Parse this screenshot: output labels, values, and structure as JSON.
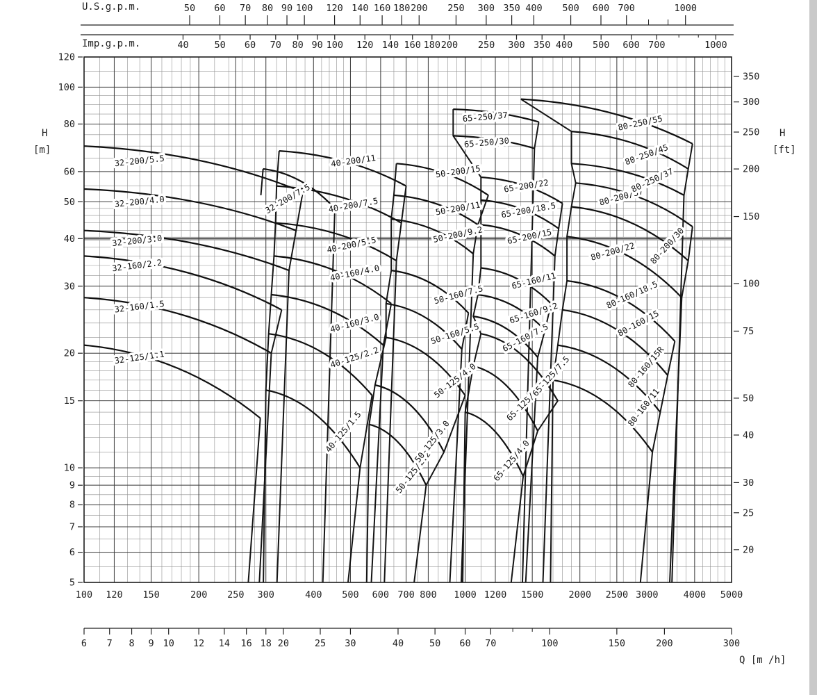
{
  "chart_data": {
    "type": "line",
    "description": "Pump selection chart: head H versus flow Q, log-log grid, envelope curves per pump model",
    "q_range_lmin": [
      100,
      5000
    ],
    "h_range_m": [
      5,
      120
    ],
    "highlight_h_m": 40,
    "axes": {
      "us_gpm": {
        "title": "U.S.g.p.m.",
        "ticks": [
          50,
          60,
          70,
          80,
          90,
          100,
          120,
          140,
          160,
          180,
          200,
          250,
          300,
          350,
          400,
          500,
          600,
          700,
          1000
        ],
        "minor": [
          800,
          900
        ],
        "lmin_per_unit": 3.7854
      },
      "imp_gpm": {
        "title": "Imp.g.p.m.",
        "ticks": [
          40,
          50,
          60,
          70,
          80,
          90,
          100,
          120,
          140,
          160,
          180,
          200,
          250,
          300,
          350,
          400,
          500,
          600,
          700,
          1000
        ],
        "minor": [
          800,
          900
        ],
        "lmin_per_unit": 4.5461
      },
      "lmin": {
        "ticks": [
          100,
          120,
          150,
          200,
          250,
          300,
          400,
          500,
          600,
          700,
          800,
          1000,
          1200,
          1500,
          2000,
          2500,
          3000,
          4000,
          5000
        ]
      },
      "m3h": {
        "title": "Q [m /h]",
        "ticks": [
          6,
          7,
          8,
          9,
          10,
          12,
          14,
          16,
          18,
          20,
          25,
          30,
          40,
          50,
          60,
          70,
          100,
          150,
          200,
          300
        ],
        "minor": [
          80,
          90
        ],
        "lmin_per_unit": 16.6667
      },
      "h_m": {
        "title": "H",
        "unit": "[m]",
        "ticks": [
          5,
          6,
          7,
          8,
          9,
          10,
          15,
          20,
          30,
          40,
          50,
          60,
          80,
          100,
          120
        ]
      },
      "h_ft": {
        "title": "H",
        "unit": "[ft]",
        "ticks": [
          20,
          25,
          30,
          40,
          50,
          75,
          100,
          150,
          200,
          250,
          300,
          350
        ],
        "m_per_unit": 0.3048
      }
    },
    "extra_segments": [
      [
        [
          291,
          52
        ],
        [
          295,
          61
        ]
      ]
    ],
    "pumps": [
      {
        "label": "32-125/1.1",
        "family": "32",
        "group": "32-125",
        "q1": 100,
        "h1": 21,
        "q2": 290,
        "h2": 13.5,
        "lq": 140,
        "lh": 19.5,
        "la": -8
      },
      {
        "label": "32-160/1.5",
        "family": "32",
        "group": "32-160",
        "q1": 100,
        "h1": 28,
        "q2": 310,
        "h2": 20,
        "lq": 140,
        "lh": 26.5,
        "la": -7
      },
      {
        "label": "32-160/2.2",
        "family": "32",
        "group": "32-160",
        "q1": 100,
        "h1": 36,
        "q2": 330,
        "h2": 26,
        "lq": 138,
        "lh": 34,
        "la": -7
      },
      {
        "label": "32-200/3.0",
        "family": "32",
        "group": "32-200",
        "q1": 100,
        "h1": 42,
        "q2": 345,
        "h2": 33,
        "lq": 138,
        "lh": 39.5,
        "la": -6
      },
      {
        "label": "32-200/4.0",
        "family": "32",
        "group": "32-200",
        "q1": 100,
        "h1": 54,
        "q2": 360,
        "h2": 42,
        "lq": 140,
        "lh": 50,
        "la": -6
      },
      {
        "label": "32-200/5.5",
        "family": "32",
        "group": "32-200",
        "q1": 100,
        "h1": 70,
        "q2": 375,
        "h2": 53,
        "lq": 140,
        "lh": 64,
        "la": -6
      },
      {
        "label": "32-200/7.5",
        "family": "32",
        "group": "32-200B",
        "q1": 295,
        "h1": 61,
        "q2": 455,
        "h2": 48,
        "lq": 345,
        "lh": 51,
        "la": -30
      },
      {
        "label": "40-125/1.5",
        "family": "40",
        "group": "40-125",
        "q1": 300,
        "h1": 16,
        "q2": 530,
        "h2": 10,
        "lq": 485,
        "lh": 12.5,
        "la": -50
      },
      {
        "label": "40-125/2.2",
        "family": "40",
        "group": "40-125",
        "q1": 305,
        "h1": 22.5,
        "q2": 570,
        "h2": 15.5,
        "lq": 515,
        "lh": 19.5,
        "la": -18
      },
      {
        "label": "40-160/3.0",
        "family": "40",
        "group": "40-160",
        "q1": 310,
        "h1": 28.5,
        "q2": 610,
        "h2": 21,
        "lq": 515,
        "lh": 24,
        "la": -15
      },
      {
        "label": "40-160/4.0",
        "family": "40",
        "group": "40-160",
        "q1": 315,
        "h1": 36,
        "q2": 640,
        "h2": 27,
        "lq": 515,
        "lh": 32.5,
        "la": -12
      },
      {
        "label": "40-200/5.5",
        "family": "40",
        "group": "40-200",
        "q1": 318,
        "h1": 44,
        "q2": 660,
        "h2": 35,
        "lq": 505,
        "lh": 38.5,
        "la": -12
      },
      {
        "label": "40-200/7.5",
        "family": "40",
        "group": "40-200",
        "q1": 320,
        "h1": 55,
        "q2": 680,
        "h2": 44,
        "lq": 510,
        "lh": 49,
        "la": -10
      },
      {
        "label": "40-200/11",
        "family": "40",
        "group": "40-200",
        "q1": 325,
        "h1": 68,
        "q2": 700,
        "h2": 55,
        "lq": 510,
        "lh": 64,
        "la": -8
      },
      {
        "label": "50-125/2.2",
        "family": "50",
        "group": "50-125",
        "q1": 560,
        "h1": 13,
        "q2": 790,
        "h2": 9,
        "lq": 740,
        "lh": 9.8,
        "la": -52
      },
      {
        "label": "50-125/3.0",
        "family": "50",
        "group": "50-125",
        "q1": 580,
        "h1": 16.5,
        "q2": 880,
        "h2": 11,
        "lq": 830,
        "lh": 11.8,
        "la": -52
      },
      {
        "label": "50-125/4.0",
        "family": "50",
        "group": "50-125",
        "q1": 620,
        "h1": 22,
        "q2": 1000,
        "h2": 15.5,
        "lq": 950,
        "lh": 17,
        "la": -38
      },
      {
        "label": "50-160/5.5",
        "family": "50",
        "group": "50-160",
        "q1": 620,
        "h1": 27,
        "q2": 980,
        "h2": 20.5,
        "lq": 945,
        "lh": 22.5,
        "la": -18
      },
      {
        "label": "50-160/7.5",
        "family": "50",
        "group": "50-160",
        "q1": 640,
        "h1": 33,
        "q2": 1020,
        "h2": 25.5,
        "lq": 965,
        "lh": 28.5,
        "la": -15
      },
      {
        "label": "50-200/9.2",
        "family": "50",
        "group": "50-200",
        "q1": 640,
        "h1": 45,
        "q2": 1050,
        "h2": 36.5,
        "lq": 960,
        "lh": 41,
        "la": -12
      },
      {
        "label": "50-200/11",
        "family": "50",
        "group": "50-200",
        "q1": 650,
        "h1": 52,
        "q2": 1080,
        "h2": 43.5,
        "lq": 960,
        "lh": 48,
        "la": -10
      },
      {
        "label": "50-200/15",
        "family": "50",
        "group": "50-200",
        "q1": 660,
        "h1": 63,
        "q2": 1150,
        "h2": 52,
        "lq": 960,
        "lh": 60,
        "la": -8
      },
      {
        "label": "65-125/4.0",
        "family": "65",
        "group": "65-125",
        "q1": 1000,
        "h1": 14,
        "q2": 1420,
        "h2": 9.5,
        "lq": 1340,
        "lh": 10.5,
        "la": -50
      },
      {
        "label": "65-125/5.5",
        "family": "65",
        "group": "65-125",
        "q1": 1050,
        "h1": 18.5,
        "q2": 1550,
        "h2": 12.5,
        "lq": 1460,
        "lh": 15,
        "la": -45
      },
      {
        "label": "65-125/7.5",
        "family": "65",
        "group": "65-125",
        "q1": 1100,
        "h1": 22.5,
        "q2": 1750,
        "h2": 15,
        "lq": 1700,
        "lh": 17.5,
        "la": -48
      },
      {
        "label": "65-160/7.5",
        "family": "65",
        "group": "65-160",
        "q1": 1050,
        "h1": 25,
        "q2": 1550,
        "h2": 19.5,
        "lq": 1450,
        "lh": 22,
        "la": -28
      },
      {
        "label": "65-160/9.2",
        "family": "65",
        "group": "65-160",
        "q1": 1080,
        "h1": 28.5,
        "q2": 1620,
        "h2": 23,
        "lq": 1520,
        "lh": 25.5,
        "la": -18
      },
      {
        "label": "65-160/11",
        "family": "65",
        "group": "65-160",
        "q1": 1100,
        "h1": 33.5,
        "q2": 1680,
        "h2": 27,
        "lq": 1520,
        "lh": 31,
        "la": -14
      },
      {
        "label": "65-200/15",
        "family": "65",
        "group": "65-200",
        "q1": 1100,
        "h1": 43.5,
        "q2": 1720,
        "h2": 36,
        "lq": 1480,
        "lh": 40.5,
        "la": -12
      },
      {
        "label": "65-200/18.5",
        "family": "65",
        "group": "65-200",
        "q1": 1100,
        "h1": 50.5,
        "q2": 1760,
        "h2": 42.5,
        "lq": 1470,
        "lh": 47.5,
        "la": -10
      },
      {
        "label": "65-200/22",
        "family": "65",
        "group": "65-200",
        "q1": 1100,
        "h1": 58,
        "q2": 1800,
        "h2": 49.5,
        "lq": 1450,
        "lh": 55,
        "la": -9
      },
      {
        "label": "65-250/30",
        "family": "65",
        "group": "65-250",
        "q1": 930,
        "h1": 74.5,
        "q2": 1520,
        "h2": 69,
        "lq": 1140,
        "lh": 71.5,
        "la": -5
      },
      {
        "label": "65-250/37",
        "family": "65",
        "group": "65-250",
        "q1": 930,
        "h1": 87.5,
        "q2": 1560,
        "h2": 81,
        "lq": 1130,
        "lh": 83.5,
        "la": -5
      },
      {
        "label": "80-160/11",
        "family": "80",
        "group": "80-160",
        "q1": 1700,
        "h1": 17,
        "q2": 3100,
        "h2": 11,
        "lq": 2980,
        "lh": 14.5,
        "la": -52
      },
      {
        "label": "80-160/15R",
        "family": "80",
        "group": "80-160",
        "q1": 1750,
        "h1": 21,
        "q2": 3250,
        "h2": 14,
        "lq": 3020,
        "lh": 18.5,
        "la": -50
      },
      {
        "label": "80-160/15",
        "family": "80",
        "group": "80-160",
        "q1": 1800,
        "h1": 26,
        "q2": 3400,
        "h2": 17.5,
        "lq": 2870,
        "lh": 24,
        "la": -28
      },
      {
        "label": "80-160/18.5",
        "family": "80",
        "group": "80-160",
        "q1": 1850,
        "h1": 31,
        "q2": 3550,
        "h2": 21.5,
        "lq": 2760,
        "lh": 28.5,
        "la": -24
      },
      {
        "label": "80-200/22",
        "family": "80",
        "group": "80-200",
        "q1": 1850,
        "h1": 40.5,
        "q2": 3700,
        "h2": 28,
        "lq": 2450,
        "lh": 37,
        "la": -16
      },
      {
        "label": "80-200/30",
        "family": "80",
        "group": "80-200",
        "q1": 1900,
        "h1": 48.5,
        "q2": 3850,
        "h2": 35,
        "lq": 3430,
        "lh": 38.5,
        "la": -48
      },
      {
        "label": "80-200/37",
        "family": "80",
        "group": "80-200",
        "q1": 1950,
        "h1": 56,
        "q2": 3950,
        "h2": 43,
        "lq": 2580,
        "lh": 51.5,
        "la": -15
      },
      {
        "label": "80-250/37",
        "family": "80",
        "group": "80-250",
        "q1": 1900,
        "h1": 63,
        "q2": 3750,
        "h2": 52,
        "lq": 3120,
        "lh": 57,
        "la": -25
      },
      {
        "label": "80-250/45",
        "family": "80",
        "group": "80-250",
        "q1": 1900,
        "h1": 76.5,
        "q2": 3850,
        "h2": 61,
        "lq": 3010,
        "lh": 66.5,
        "la": -20
      },
      {
        "label": "80-250/55",
        "family": "80",
        "group": "80-250",
        "q1": 1400,
        "h1": 93,
        "q2": 3950,
        "h2": 71,
        "lq": 2890,
        "lh": 80.5,
        "la": -12
      }
    ]
  }
}
